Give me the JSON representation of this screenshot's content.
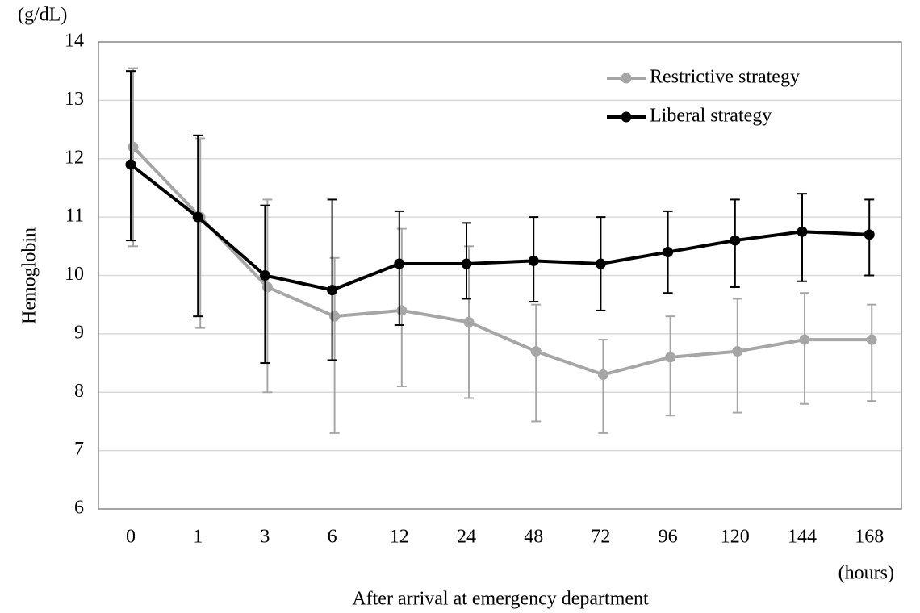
{
  "chart_data": {
    "type": "line",
    "y_unit": "(g/dL)",
    "y_label": "Hemoglobin",
    "x_unit": "(hours)",
    "x_label": "After arrival at emergency department",
    "categories": [
      "0",
      "1",
      "3",
      "6",
      "12",
      "24",
      "48",
      "72",
      "96",
      "120",
      "144",
      "168"
    ],
    "series": [
      {
        "name": "Restrictive strategy",
        "color": "#a6a6a6",
        "values": [
          12.2,
          11.0,
          9.8,
          9.3,
          9.4,
          9.2,
          8.7,
          8.3,
          8.6,
          8.7,
          8.9,
          8.9
        ],
        "lower": [
          10.5,
          9.1,
          8.0,
          7.3,
          8.1,
          7.9,
          7.5,
          7.3,
          7.6,
          7.65,
          7.8,
          7.85
        ],
        "upper": [
          13.55,
          12.35,
          11.3,
          10.3,
          10.8,
          10.5,
          9.5,
          8.9,
          9.3,
          9.6,
          9.7,
          9.5
        ]
      },
      {
        "name": "Liberal strategy",
        "color": "#000000",
        "values": [
          11.9,
          11.0,
          10.0,
          9.75,
          10.2,
          10.2,
          10.25,
          10.2,
          10.4,
          10.6,
          10.75,
          10.7
        ],
        "lower": [
          10.6,
          9.3,
          8.5,
          8.55,
          9.15,
          9.6,
          9.55,
          9.4,
          9.7,
          9.8,
          9.9,
          10.0
        ],
        "upper": [
          13.5,
          12.4,
          11.2,
          11.3,
          11.1,
          10.9,
          11.0,
          11.0,
          11.1,
          11.3,
          11.4,
          11.3
        ]
      }
    ],
    "ylim": [
      6,
      14
    ],
    "yticks": [
      6,
      7,
      8,
      9,
      10,
      11,
      12,
      13,
      14
    ],
    "grid": true,
    "legend": "top-right"
  }
}
